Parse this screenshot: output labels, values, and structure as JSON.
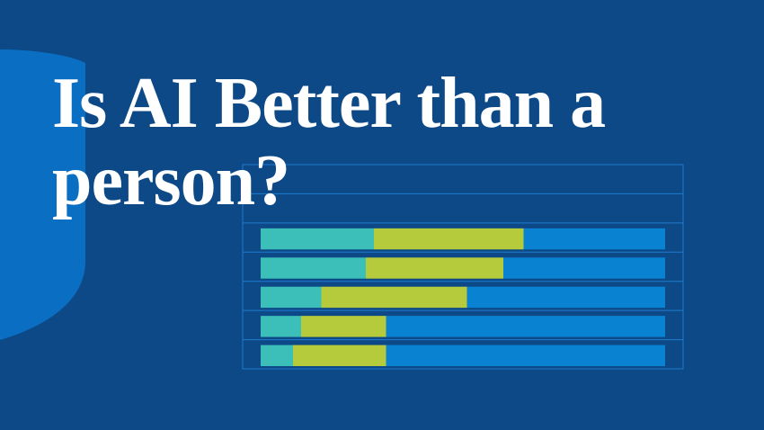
{
  "chart_data": {
    "type": "stacked-barh",
    "title": "Is AI Better than a person?",
    "categories": [
      null,
      null,
      null,
      null,
      null
    ],
    "series": [
      {
        "color": "#3bbfb8",
        "values": [
          28,
          26,
          15,
          10,
          8
        ]
      },
      {
        "color": "#b6cb3b",
        "values": [
          37,
          34,
          36,
          21,
          23
        ]
      },
      {
        "color": "#0a82d2",
        "values": [
          35,
          40,
          49,
          69,
          69
        ]
      }
    ],
    "xlim": [
      0,
      100
    ]
  }
}
